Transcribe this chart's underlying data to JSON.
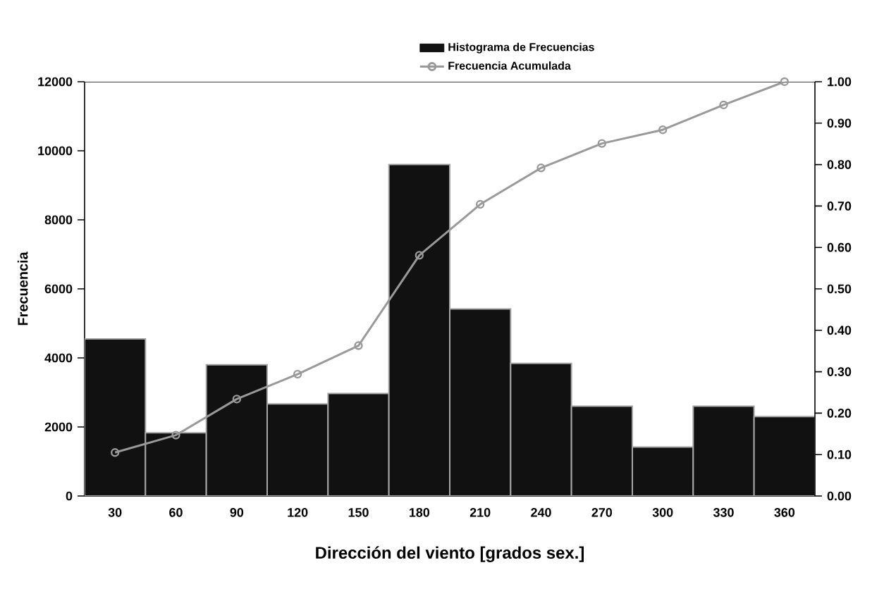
{
  "chart_data": {
    "type": "bar",
    "xlabel": "Dirección del viento [grados sex.]",
    "ylabel": "Frecuencia",
    "categories": [
      "30",
      "60",
      "90",
      "120",
      "150",
      "180",
      "210",
      "240",
      "270",
      "300",
      "330",
      "360"
    ],
    "series": [
      {
        "name": "Histograma de Frecuencias",
        "color": "#111111",
        "values": [
          4550,
          1830,
          3800,
          2670,
          2970,
          9600,
          5420,
          3840,
          2600,
          1420,
          2600,
          2300
        ]
      },
      {
        "name": "Frecuencia Acumulada",
        "type": "line",
        "axis": "y2",
        "color": "#999999",
        "values": [
          0.105,
          0.147,
          0.234,
          0.294,
          0.363,
          0.581,
          0.704,
          0.792,
          0.851,
          0.884,
          0.944,
          1.0
        ]
      }
    ],
    "ylim": [
      0,
      12000
    ],
    "yticks": [
      0,
      2000,
      4000,
      6000,
      8000,
      10000,
      12000
    ],
    "y2lim": [
      0,
      1
    ],
    "y2ticks": [
      {
        "value": 0,
        "label": "0.00"
      },
      {
        "value": 0.1,
        "label": "0.10"
      },
      {
        "value": 0.2,
        "label": "0.20"
      },
      {
        "value": 0.3,
        "label": "0.30"
      },
      {
        "value": 0.4,
        "label": "0.40"
      },
      {
        "value": 0.5,
        "label": "0.50"
      },
      {
        "value": 0.6,
        "label": "0.60"
      },
      {
        "value": 0.7,
        "label": "0.70"
      },
      {
        "value": 0.8,
        "label": "0.80"
      },
      {
        "value": 0.9,
        "label": "0.90"
      },
      {
        "value": 1.0,
        "label": "1.00"
      }
    ],
    "legend": "top",
    "marker": "circle",
    "grid": false
  }
}
